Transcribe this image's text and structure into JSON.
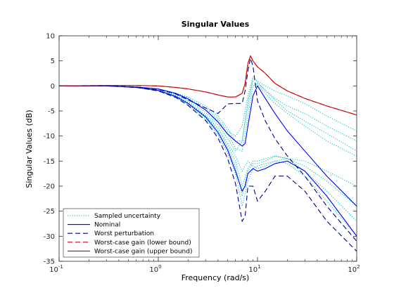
{
  "chart_data": {
    "type": "line",
    "title": "Singular Values",
    "xlabel": "Frequency (rad/s)",
    "ylabel": "Singular Values (dB)",
    "xscale": "log",
    "xlim": [
      0.1,
      100
    ],
    "ylim": [
      -35,
      10
    ],
    "x_ticks": [
      {
        "label_base": "10",
        "label_exp": "-1"
      },
      {
        "label_base": "10",
        "label_exp": "0"
      },
      {
        "label_base": "10",
        "label_exp": "1"
      },
      {
        "label_base": "10",
        "label_exp": "2"
      }
    ],
    "y_ticks": [
      10,
      5,
      0,
      -5,
      -10,
      -15,
      -20,
      -25,
      -30,
      -35
    ],
    "grid": false,
    "legend_position": "bottom-left",
    "legend": [
      "Sampled uncertainty",
      "Nominal",
      "Worst perturbation",
      "Worst-case gain (lower bound)",
      "Worst-case gain (upper bound)"
    ],
    "series": [
      {
        "name": "Sampled uncertainty",
        "color": "#00bfbf",
        "style": "dotted",
        "curves": [
          {
            "x": [
              0.1,
              0.3,
              0.6,
              1,
              1.5,
              2,
              3,
              4,
              5,
              6,
              7,
              8,
              9,
              10,
              12,
              15,
              20,
              30,
              50,
              100
            ],
            "y": [
              0,
              0,
              -0.2,
              -0.6,
              -1.4,
              -2.2,
              -4,
              -6,
              -8.5,
              -11,
              -11,
              -4,
              1.5,
              1,
              0,
              -1,
              -2,
              -3.5,
              -6,
              -9
            ]
          },
          {
            "x": [
              0.1,
              0.3,
              0.6,
              1,
              1.5,
              2,
              3,
              4,
              5,
              6,
              7,
              8,
              9,
              10,
              12,
              15,
              20,
              30,
              50,
              100
            ],
            "y": [
              0,
              0,
              -0.2,
              -0.7,
              -1.6,
              -2.6,
              -4.8,
              -7,
              -9.5,
              -12.5,
              -13,
              -6,
              0,
              0.5,
              -0.8,
              -2.5,
              -4,
              -5.5,
              -8,
              -11
            ]
          },
          {
            "x": [
              0.1,
              0.3,
              0.6,
              1,
              1.5,
              2,
              3,
              4,
              5,
              6,
              7,
              8,
              9,
              10,
              12,
              15,
              20,
              30,
              50,
              100
            ],
            "y": [
              0,
              0,
              -0.3,
              -0.8,
              -1.8,
              -3,
              -5.3,
              -7.8,
              -10.5,
              -13,
              -11,
              -3,
              1,
              0.2,
              -1.5,
              -3.5,
              -5.5,
              -8,
              -11,
              -14
            ]
          },
          {
            "x": [
              0.1,
              0.3,
              0.6,
              1,
              1.5,
              2,
              3,
              4,
              5,
              6,
              7,
              8,
              9,
              10,
              12,
              15,
              20,
              30,
              50,
              100
            ],
            "y": [
              0,
              0,
              -0.2,
              -0.7,
              -1.5,
              -2.4,
              -4.4,
              -6.6,
              -9,
              -10,
              -8,
              -2,
              1.8,
              0.8,
              -1,
              -2.8,
              -5,
              -7,
              -9.5,
              -13
            ]
          },
          {
            "x": [
              0.1,
              0.3,
              0.6,
              1,
              1.5,
              2,
              3,
              4,
              5,
              6,
              7,
              8,
              9,
              10,
              12,
              15,
              20,
              30,
              50,
              100
            ],
            "y": [
              0,
              0,
              -0.3,
              -0.9,
              -2,
              -3.3,
              -5.8,
              -8.4,
              -11.5,
              -14,
              -17,
              -15,
              -16,
              -16.5,
              -16,
              -15,
              -14.5,
              -15,
              -17,
              -20
            ]
          },
          {
            "x": [
              0.1,
              0.3,
              0.6,
              1,
              1.5,
              2,
              3,
              4,
              5,
              6,
              7,
              8,
              9,
              10,
              12,
              15,
              20,
              30,
              50,
              100
            ],
            "y": [
              0,
              0,
              -0.3,
              -1,
              -2.2,
              -3.6,
              -6.3,
              -9.3,
              -12.5,
              -16,
              -22,
              -17,
              -15.5,
              -15.5,
              -15,
              -14,
              -14.5,
              -17,
              -21,
              -27
            ]
          },
          {
            "x": [
              0.1,
              0.3,
              0.6,
              1,
              1.5,
              2,
              3,
              4,
              5,
              6,
              7,
              8,
              9,
              10,
              12,
              15,
              20,
              30,
              50,
              100
            ],
            "y": [
              0,
              0,
              -0.3,
              -1,
              -2.3,
              -3.8,
              -6.6,
              -9.8,
              -13.5,
              -17.5,
              -24,
              -19,
              -16.5,
              -16,
              -15.5,
              -15,
              -15.5,
              -18,
              -23,
              -30
            ]
          },
          {
            "x": [
              0.1,
              0.3,
              0.6,
              1,
              1.5,
              2,
              3,
              4,
              5,
              6,
              7,
              8,
              9,
              10,
              12,
              15,
              20,
              30,
              50,
              100
            ],
            "y": [
              0,
              0,
              -0.3,
              -0.9,
              -2.1,
              -3.4,
              -6,
              -8.8,
              -12,
              -15,
              -20,
              -16.5,
              -15,
              -15,
              -14.5,
              -14,
              -14.5,
              -16,
              -19,
              -24
            ]
          }
        ]
      },
      {
        "name": "Nominal",
        "color": "#0000ff",
        "style": "solid",
        "curves": [
          {
            "x": [
              0.1,
              0.3,
              0.6,
              1,
              1.5,
              2,
              3,
              4,
              5,
              6,
              7,
              7.5,
              8,
              9,
              10,
              12,
              15,
              20,
              30,
              50,
              100
            ],
            "y": [
              0,
              0,
              -0.2,
              -0.6,
              -1.5,
              -2.6,
              -4.8,
              -7.2,
              -9.6,
              -11,
              -12,
              -11.5,
              -8,
              -2,
              0,
              -2.5,
              -5.5,
              -9,
              -13,
              -18,
              -24
            ]
          },
          {
            "x": [
              0.1,
              0.3,
              0.6,
              1,
              1.5,
              2,
              3,
              4,
              5,
              6,
              7,
              7.5,
              8,
              9,
              10,
              12,
              15,
              20,
              30,
              50,
              100
            ],
            "y": [
              0,
              0,
              -0.3,
              -0.9,
              -2.1,
              -3.5,
              -6.2,
              -9.3,
              -12.8,
              -17,
              -21,
              -20,
              -17.5,
              -16.5,
              -17,
              -16.5,
              -15.5,
              -15,
              -17,
              -22,
              -30
            ]
          }
        ]
      },
      {
        "name": "Worst perturbation",
        "color": "#00008b",
        "style": "dashed",
        "curves": [
          {
            "x": [
              0.1,
              0.3,
              0.6,
              1,
              1.5,
              2,
              3,
              4,
              5,
              6,
              7,
              7.5,
              8,
              8.5,
              9,
              10,
              12,
              15,
              20,
              30,
              50,
              100
            ],
            "y": [
              0,
              0,
              -0.2,
              -0.7,
              -1.6,
              -2.8,
              -4.4,
              -5.5,
              -3.6,
              -3.5,
              -3.5,
              -1,
              3,
              5.5,
              4,
              -3,
              -7,
              -10.5,
              -14,
              -18,
              -24,
              -31
            ]
          },
          {
            "x": [
              0.1,
              0.3,
              0.6,
              1,
              1.5,
              2,
              3,
              4,
              5,
              6,
              7,
              7.5,
              8,
              9,
              10,
              12,
              15,
              20,
              30,
              50,
              100
            ],
            "y": [
              0,
              0,
              -0.3,
              -1,
              -2.3,
              -3.9,
              -6.9,
              -10.4,
              -14.5,
              -19.5,
              -27,
              -26,
              -20,
              -20,
              -23,
              -21,
              -18,
              -18,
              -21,
              -27,
              -33
            ]
          }
        ]
      },
      {
        "name": "Worst-case gain (lower bound)",
        "color": "#cc0000",
        "style": "dashed",
        "curves": [
          {
            "x": [
              0.1,
              0.3,
              0.6,
              1,
              1.5,
              2,
              3,
              4,
              5,
              6,
              7,
              7.5,
              8,
              8.5,
              9,
              10,
              12,
              15,
              20,
              30,
              50,
              100
            ],
            "y": [
              0,
              0.1,
              0.1,
              0,
              -0.3,
              -0.6,
              -1.2,
              -1.8,
              -2.2,
              -2.2,
              -1.5,
              0.5,
              4.5,
              6,
              5,
              3.8,
              2.5,
              0.5,
              -1,
              -2.5,
              -4,
              -5.8
            ]
          }
        ]
      },
      {
        "name": "Worst-case gain (upper bound)",
        "color": "#cc0000",
        "style": "solid",
        "curves": [
          {
            "x": [
              0.1,
              0.3,
              0.6,
              1,
              1.5,
              2,
              3,
              4,
              5,
              6,
              7,
              7.5,
              8,
              8.5,
              9,
              10,
              12,
              15,
              20,
              30,
              50,
              100
            ],
            "y": [
              0,
              0.1,
              0.1,
              0,
              -0.3,
              -0.6,
              -1.2,
              -1.8,
              -2.2,
              -2.2,
              -1.5,
              0.5,
              4.5,
              6,
              5,
              3.8,
              2.5,
              0.5,
              -1,
              -2.5,
              -4,
              -5.8
            ]
          }
        ]
      }
    ]
  }
}
